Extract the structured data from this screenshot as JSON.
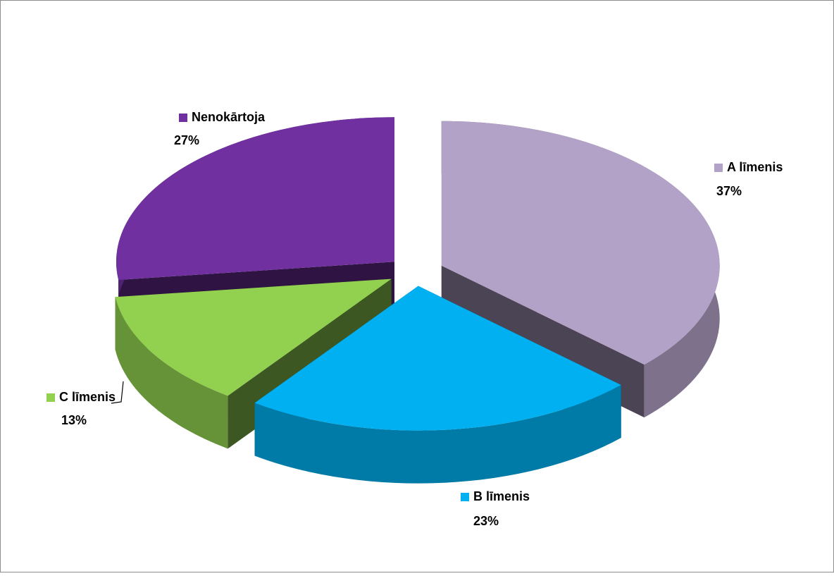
{
  "chart_data": {
    "type": "pie",
    "categories": [
      "A līmenis",
      "B līmenis",
      "C līmenis",
      "Nenokārtoja"
    ],
    "values": [
      37,
      23,
      13,
      27
    ],
    "value_labels": [
      "37%",
      "23%",
      "13%",
      "27%"
    ],
    "colors": [
      "#b3a2c7",
      "#00b0f0",
      "#92d050",
      "#7030a0"
    ]
  }
}
